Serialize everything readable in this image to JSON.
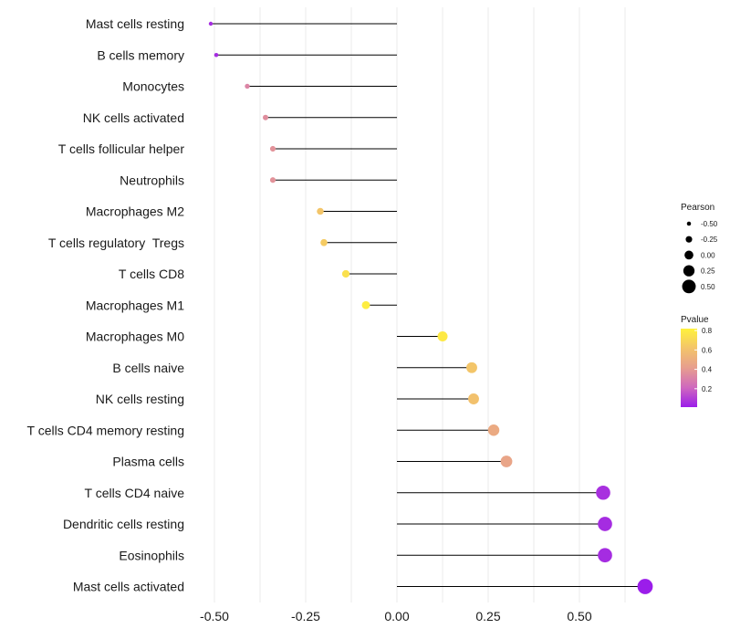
{
  "chart_data": {
    "type": "lollipop",
    "title": "",
    "xlabel": "",
    "ylabel": "",
    "xlim": [
      -0.57,
      0.76
    ],
    "x_ticks": [
      -0.5,
      -0.25,
      0.0,
      0.25,
      0.5
    ],
    "x_tick_labels": [
      "-0.50",
      "-0.25",
      "0.00",
      "0.25",
      "0.50"
    ],
    "grid": true,
    "categories": [
      "Mast cells resting",
      "B cells memory",
      "Monocytes",
      "NK cells activated",
      "T cells follicular helper",
      "Neutrophils",
      "Macrophages M2",
      "T cells regulatory  Tregs",
      "T cells CD8",
      "Macrophages M1",
      "Macrophages M0",
      "B cells naive",
      "NK cells resting",
      "T cells CD4 memory resting",
      "Plasma cells",
      "T cells CD4 naive",
      "Dendritic cells resting",
      "Eosinophils",
      "Mast cells activated"
    ],
    "pearson": [
      -0.51,
      -0.495,
      -0.41,
      -0.36,
      -0.34,
      -0.34,
      -0.21,
      -0.2,
      -0.14,
      -0.085,
      0.125,
      0.205,
      0.21,
      0.265,
      0.3,
      0.565,
      0.57,
      0.57,
      0.68
    ],
    "pvalue": [
      0.05,
      0.05,
      0.32,
      0.35,
      0.37,
      0.37,
      0.62,
      0.65,
      0.74,
      0.8,
      0.78,
      0.62,
      0.6,
      0.48,
      0.45,
      0.06,
      0.05,
      0.05,
      0.01
    ],
    "size_legend": {
      "title": "Pearson",
      "values": [
        -0.5,
        -0.25,
        0.0,
        0.25,
        0.5
      ],
      "labels": [
        "-0.50",
        "-0.25",
        "0.00",
        "0.25",
        "0.50"
      ]
    },
    "color_legend": {
      "title": "Pvalue",
      "ticks": [
        0.8,
        0.6,
        0.4,
        0.2
      ],
      "tick_labels": [
        "0.8",
        "0.6",
        "0.4",
        "0.2"
      ],
      "range": [
        0.01,
        0.82
      ],
      "colormap": [
        "#9b1dea",
        "#cf68be",
        "#e79e8e",
        "#f3c46a",
        "#fff23c"
      ]
    }
  }
}
